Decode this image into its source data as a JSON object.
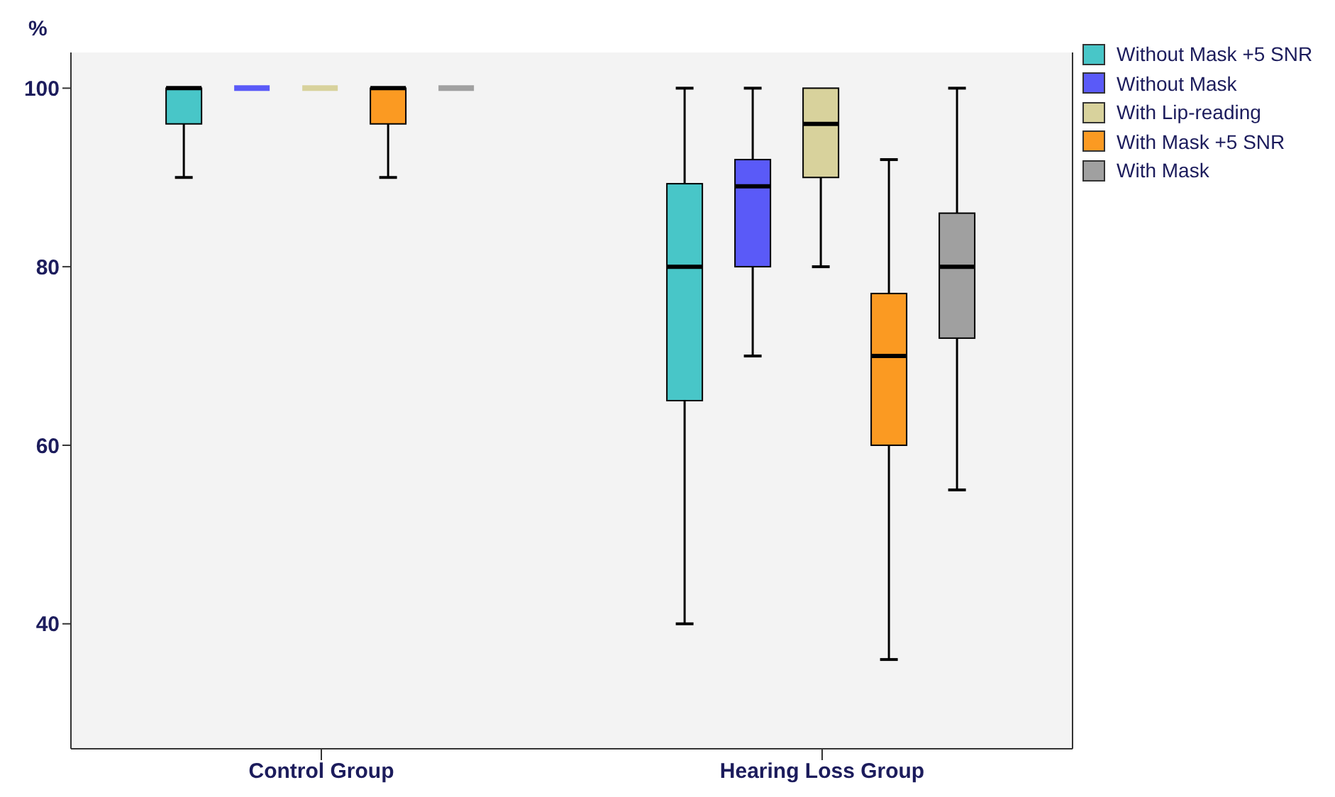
{
  "chart_data": {
    "type": "box",
    "ylabel": "%",
    "categories": [
      "Control Group",
      "Hearing Loss Group"
    ],
    "ylim": [
      26,
      104
    ],
    "yticks": [
      40,
      60,
      80,
      100
    ],
    "grid": false,
    "legend": "top right",
    "series": [
      {
        "name": "Without Mask +5 SNR",
        "color": "#48c6c8",
        "boxes": [
          {
            "low": 90,
            "q1": 96,
            "median": 100,
            "q3": 100,
            "high": 100
          },
          {
            "low": 40,
            "q1": 65,
            "median": 80,
            "q3": 89.3,
            "high": 100
          }
        ]
      },
      {
        "name": "Without Mask",
        "color": "#5a5af8",
        "boxes": [
          {
            "low": 100,
            "q1": 100,
            "median": 100,
            "q3": 100,
            "high": 100
          },
          {
            "low": 70,
            "q1": 80,
            "median": 89,
            "q3": 92,
            "high": 100
          }
        ]
      },
      {
        "name": "With Lip-reading",
        "color": "#d8d29c",
        "boxes": [
          {
            "low": 100,
            "q1": 100,
            "median": 100,
            "q3": 100,
            "high": 100
          },
          {
            "low": 80,
            "q1": 90,
            "median": 96,
            "q3": 100,
            "high": 100
          }
        ]
      },
      {
        "name": "With Mask +5 SNR",
        "color": "#fb9a22",
        "boxes": [
          {
            "low": 90,
            "q1": 96,
            "median": 100,
            "q3": 100,
            "high": 100
          },
          {
            "low": 36,
            "q1": 60,
            "median": 70,
            "q3": 77,
            "high": 92
          }
        ]
      },
      {
        "name": "With Mask",
        "color": "#a0a0a0",
        "boxes": [
          {
            "low": 100,
            "q1": 100,
            "median": 100,
            "q3": 100,
            "high": 100
          },
          {
            "low": 55,
            "q1": 72,
            "median": 80,
            "q3": 86,
            "high": 100
          }
        ]
      }
    ]
  }
}
